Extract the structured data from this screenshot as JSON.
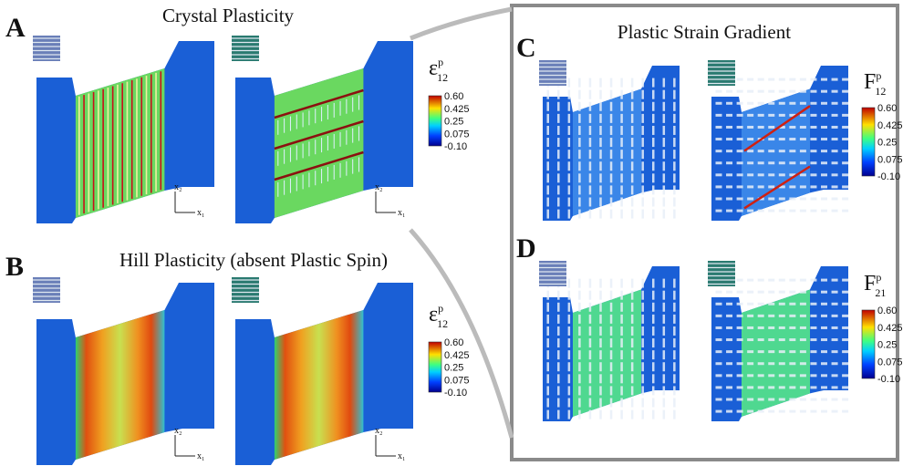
{
  "figure": {
    "panels": [
      {
        "label": "A",
        "title": "Crystal Plasticity",
        "colorbar": {
          "symbol": "ε",
          "superscript": "p",
          "subscript": "12",
          "ticks": [
            "0.60",
            "0.425",
            "0.25",
            "0.075",
            "-0.10"
          ]
        },
        "axes": [
          [
            "x₂",
            "x₁"
          ],
          [
            "x₂",
            "x₁"
          ]
        ]
      },
      {
        "label": "B",
        "title": "Hill Plasticity (absent Plastic Spin)",
        "colorbar": {
          "symbol": "ε",
          "superscript": "p",
          "subscript": "12",
          "ticks": [
            "0.60",
            "0.425",
            "0.25",
            "0.075",
            "-0.10"
          ]
        },
        "axes": [
          [
            "x₂",
            "x₁"
          ],
          [
            "x₂",
            "x₁"
          ]
        ]
      },
      {
        "label": "C",
        "title": "Plastic Strain Gradient",
        "colorbar": {
          "symbol": "F",
          "superscript": "p",
          "subscript": "12",
          "ticks": [
            "0.60",
            "0.425",
            "0.25",
            "0.075",
            "-0.10"
          ]
        }
      },
      {
        "label": "D",
        "colorbar": {
          "symbol": "F",
          "superscript": "p",
          "subscript": "21",
          "ticks": [
            "0.60",
            "0.425",
            "0.25",
            "0.075",
            "-0.10"
          ]
        }
      }
    ]
  }
}
